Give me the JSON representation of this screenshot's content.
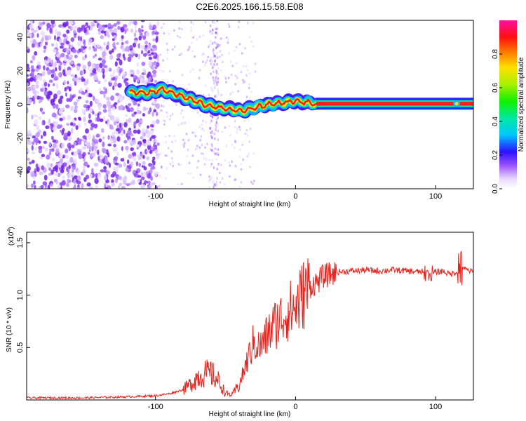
{
  "title": "C2E6.2025.166.15.58.E08",
  "colors": {
    "signal": "#e8201a",
    "scatter": "#7a33ee",
    "frame": "#000000"
  },
  "colorbar": {
    "label": "Normalized spectral amplitude",
    "ticks": [
      "0.0",
      "0.2",
      "0.4",
      "0.6",
      "0.8"
    ],
    "tick_values": [
      0,
      0.2,
      0.4,
      0.6,
      0.8
    ],
    "range": [
      0,
      1
    ]
  },
  "chart_data": [
    {
      "type": "heatmap",
      "title": "C2E6.2025.166.15.58.E08",
      "xlabel": "Height of straight line (km)",
      "ylabel": "Frequency (Hz)",
      "xlim": [
        -192,
        127
      ],
      "ylim": [
        -50,
        50
      ],
      "xticks": [
        -100,
        0,
        100
      ],
      "xtick_labels": [
        "-100",
        "0",
        "100"
      ],
      "yticks": [
        -40,
        -20,
        0,
        20,
        40
      ],
      "ytick_labels": [
        "-40",
        "-20",
        "0",
        "20",
        "40"
      ],
      "ridge": {
        "description": "dominant frequency track (Hz) vs height",
        "x": [
          -118,
          -105,
          -95,
          -85,
          -75,
          -65,
          -55,
          -45,
          -38,
          -30,
          -20,
          -10,
          0,
          10,
          15,
          127
        ],
        "y": [
          7,
          7,
          9,
          6,
          3,
          0,
          -2,
          -3,
          -4,
          -2,
          0,
          1,
          2,
          1,
          0.5,
          0.5
        ]
      },
      "noise_region_x": [
        -192,
        -98
      ]
    },
    {
      "type": "line",
      "xlabel": "Height of straight line (km)",
      "ylabel": "SNR (10 * v/v)",
      "y_multiplier": "(x10",
      "y_multiplier_exp": "4",
      "y_multiplier_close": ")",
      "xlim": [
        -192,
        127
      ],
      "ylim": [
        0,
        1.6
      ],
      "xticks": [
        -100,
        0,
        100
      ],
      "xtick_labels": [
        "-100",
        "0",
        "100"
      ],
      "yticks": [
        0.5,
        1.0,
        1.5
      ],
      "ytick_labels": [
        "0.5",
        "1.0",
        "1.5"
      ],
      "series": [
        {
          "name": "SNR",
          "x": [
            -192,
            -150,
            -120,
            -100,
            -90,
            -80,
            -75,
            -70,
            -65,
            -60,
            -55,
            -50,
            -45,
            -40,
            -35,
            -30,
            -25,
            -20,
            -15,
            -10,
            -5,
            0,
            5,
            10,
            15,
            20,
            25,
            30,
            40,
            50,
            60,
            70,
            80,
            90,
            95,
            100,
            105,
            110,
            115,
            118,
            120,
            127
          ],
          "y": [
            0.02,
            0.02,
            0.03,
            0.04,
            0.06,
            0.1,
            0.15,
            0.22,
            0.25,
            0.25,
            0.18,
            0.06,
            0.05,
            0.15,
            0.35,
            0.55,
            0.5,
            0.62,
            0.72,
            0.78,
            0.85,
            0.88,
            1.0,
            1.08,
            1.12,
            1.18,
            1.2,
            1.22,
            1.23,
            1.24,
            1.23,
            1.24,
            1.23,
            1.22,
            1.2,
            1.22,
            1.23,
            1.2,
            1.22,
            1.3,
            1.25,
            1.22
          ]
        }
      ]
    }
  ]
}
